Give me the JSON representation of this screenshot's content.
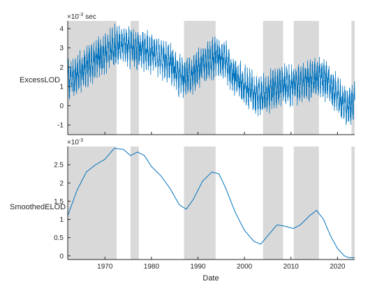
{
  "chart_data": [
    {
      "type": "line",
      "ylabel": "ExcessLOD",
      "y_multiplier_base": "×10",
      "y_multiplier_exp": "-3",
      "y_unit": "sec",
      "xlim": [
        1962,
        2023.7
      ],
      "ylim": [
        -1.5,
        4.4
      ],
      "yticks": [
        -1,
        0,
        1,
        2,
        3,
        4
      ],
      "grid": false,
      "line_color": "#0072BD",
      "shaded_periods": [
        [
          1962,
          1972.5
        ],
        [
          1975.5,
          1977.3
        ],
        [
          1987,
          1993.8
        ],
        [
          2004,
          2008.3
        ],
        [
          2010.6,
          2016
        ],
        [
          2023,
          2023.7
        ]
      ],
      "series": [
        {
          "x": [
            1962,
            1964,
            1966,
            1968,
            1970,
            1972,
            1974,
            1976,
            1978,
            1980,
            1982,
            1984,
            1986,
            1988,
            1990,
            1992,
            1994,
            1996,
            1998,
            2000,
            2002,
            2004,
            2006,
            2008,
            2010,
            2012,
            2014,
            2016,
            2018,
            2020,
            2022,
            2023.7
          ],
          "y": [
            1.3,
            1.6,
            2.0,
            2.4,
            2.75,
            3.05,
            3.15,
            3.0,
            3.0,
            2.75,
            2.5,
            2.25,
            1.6,
            1.5,
            1.9,
            2.3,
            2.6,
            2.3,
            1.5,
            1.0,
            0.7,
            0.5,
            0.85,
            1.1,
            1.0,
            1.15,
            1.3,
            1.5,
            1.25,
            0.5,
            -0.1,
            0.3
          ]
        }
      ]
    },
    {
      "type": "line",
      "xlabel": "Date",
      "ylabel": "SmoothedELOD",
      "y_multiplier_base": "×10",
      "y_multiplier_exp": "-3",
      "xlim": [
        1962,
        2023.7
      ],
      "ylim": [
        -0.1,
        3.0
      ],
      "yticks": [
        0,
        0.5,
        1,
        1.5,
        2,
        2.5
      ],
      "yticklabels": [
        "0",
        "0.5",
        "1",
        "1.5",
        "2",
        "2.5"
      ],
      "xticks": [
        1970,
        1980,
        1990,
        2000,
        2010,
        2020
      ],
      "grid": false,
      "line_color": "#0072BD",
      "shaded_periods": [
        [
          1962,
          1972.5
        ],
        [
          1975.5,
          1977.3
        ],
        [
          1987,
          1993.8
        ],
        [
          2004,
          2008.3
        ],
        [
          2010.6,
          2016
        ],
        [
          2023,
          2023.7
        ]
      ],
      "series": [
        {
          "x": [
            1962,
            1964,
            1966,
            1968,
            1970,
            1972,
            1974,
            1975.5,
            1977,
            1978.5,
            1980,
            1982,
            1984,
            1986,
            1987.5,
            1989,
            1991,
            1993,
            1994.5,
            1996,
            1998,
            2000,
            2002,
            2003.5,
            2005,
            2007,
            2008.5,
            2010.5,
            2012,
            2014,
            2015.5,
            2017,
            2018.5,
            2020,
            2021.5,
            2022.5,
            2023.5
          ],
          "y": [
            1.1,
            1.8,
            2.3,
            2.5,
            2.65,
            2.95,
            2.92,
            2.75,
            2.85,
            2.75,
            2.45,
            2.2,
            1.85,
            1.4,
            1.28,
            1.55,
            2.05,
            2.3,
            2.25,
            1.85,
            1.2,
            0.7,
            0.4,
            0.32,
            0.55,
            0.85,
            0.82,
            0.75,
            0.85,
            1.1,
            1.25,
            1.0,
            0.55,
            0.2,
            0.0,
            -0.05,
            -0.05
          ]
        }
      ]
    }
  ]
}
